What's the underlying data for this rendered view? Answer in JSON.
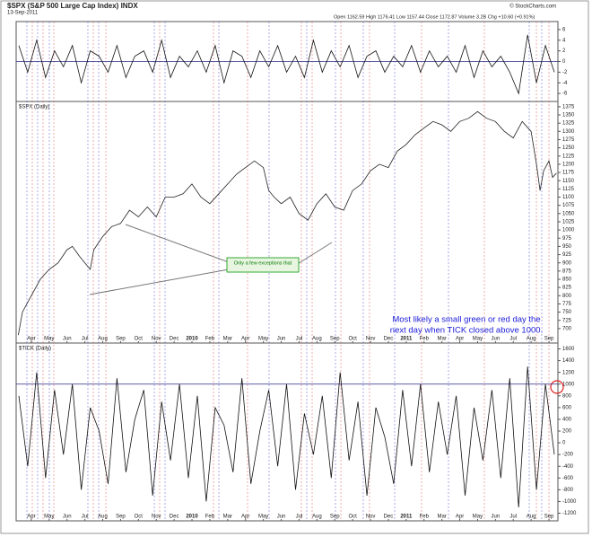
{
  "header": {
    "title": "$SPX (S&P 500 Large Cap Index) INDX",
    "date": "13-Sep-2011",
    "quote": "Open 1162.59 High 1176.41 Low 1157.44 Close 1172.87 Volume 3.2B Chg +10.60 (+0.91%)",
    "source": "© StockCharts.com"
  },
  "chart_data": [
    {
      "type": "line",
      "color": "#111111",
      "x": [
        0.3,
        0.8,
        1.3,
        1.8,
        2.3,
        2.8,
        3.3,
        3.8,
        4.3,
        4.8,
        5.3,
        5.8,
        6.3,
        6.8,
        7.3,
        7.8,
        8.3,
        8.8,
        9.3,
        9.8,
        10.3,
        10.8,
        11.3,
        11.8,
        12.3,
        12.8,
        13.3,
        13.8,
        14.3,
        14.8,
        15.3,
        15.8,
        16.3,
        16.8,
        17.3,
        17.8,
        18.3,
        18.8,
        19.3,
        19.8,
        20.3,
        20.8,
        21.3,
        21.8,
        22.3,
        22.8,
        23.3,
        23.8,
        24.3,
        24.8,
        25.3,
        25.8,
        26.3,
        26.8,
        27.3,
        27.8,
        28.3,
        28.8,
        29.3,
        29.8,
        30.3
      ],
      "values": [
        3,
        -2,
        4,
        -3,
        2,
        -1,
        3,
        -4,
        2,
        1,
        -2,
        3,
        -3,
        1,
        2,
        -2,
        4,
        -3,
        1,
        -1,
        2,
        -2,
        3,
        -4,
        2,
        1,
        -3,
        2,
        -1,
        3,
        -2,
        1,
        -3,
        4,
        -2,
        2,
        -1,
        3,
        -3,
        1,
        2,
        -2,
        1,
        -1,
        3,
        -2,
        2,
        -1,
        1,
        -2,
        3,
        -3,
        2,
        -1,
        1,
        -2,
        -6,
        5,
        -4,
        3,
        -2
      ],
      "xlim": [
        0.15,
        30.5
      ],
      "ylim": [
        -7.5,
        7.5
      ],
      "yticks": [
        6,
        4,
        2,
        0,
        -2,
        -4,
        -6
      ],
      "reference_line": 0
    },
    {
      "type": "line",
      "label": "$SPX (Daily)",
      "color": "#222222",
      "x": [
        0.27,
        0.5,
        1,
        1.5,
        2,
        2.5,
        3,
        3.3,
        3.7,
        4,
        4.3,
        4.5,
        5,
        5.5,
        6,
        6.5,
        7,
        7.5,
        8,
        8.5,
        9,
        9.5,
        10,
        10.5,
        11,
        11.5,
        12,
        12.5,
        13,
        13.5,
        14,
        14.3,
        14.6,
        15,
        15.5,
        16,
        16.5,
        17,
        17.5,
        18,
        18.5,
        19,
        19.5,
        20,
        20.5,
        21,
        21.5,
        22,
        22.5,
        23,
        23.5,
        24,
        24.5,
        25,
        25.5,
        26,
        26.5,
        27,
        27.5,
        28,
        28.5,
        29,
        29.3,
        29.5,
        29.7,
        30,
        30.2,
        30.42
      ],
      "values": [
        680,
        750,
        800,
        850,
        880,
        900,
        940,
        950,
        920,
        900,
        880,
        940,
        980,
        1010,
        1020,
        1060,
        1040,
        1070,
        1040,
        1100,
        1100,
        1110,
        1140,
        1100,
        1080,
        1110,
        1140,
        1170,
        1190,
        1210,
        1190,
        1120,
        1100,
        1080,
        1100,
        1050,
        1030,
        1080,
        1110,
        1070,
        1060,
        1120,
        1140,
        1180,
        1200,
        1190,
        1240,
        1260,
        1290,
        1310,
        1330,
        1320,
        1300,
        1330,
        1340,
        1360,
        1340,
        1330,
        1300,
        1280,
        1330,
        1300,
        1200,
        1120,
        1180,
        1210,
        1160,
        1172.87
      ],
      "xlim": [
        0.15,
        30.5
      ],
      "ylim": [
        656,
        1391
      ],
      "yticks": [
        700,
        725,
        750,
        775,
        800,
        825,
        850,
        875,
        900,
        925,
        950,
        975,
        1000,
        1025,
        1050,
        1075,
        1100,
        1125,
        1150,
        1175,
        1200,
        1225,
        1250,
        1275,
        1300,
        1325,
        1350,
        1375
      ],
      "xticks": [
        {
          "value": 1,
          "label": "Apr"
        },
        {
          "value": 2,
          "label": "May"
        },
        {
          "value": 3,
          "label": "Jun"
        },
        {
          "value": 4,
          "label": "Jul"
        },
        {
          "value": 5,
          "label": "Aug"
        },
        {
          "value": 6,
          "label": "Sep"
        },
        {
          "value": 7,
          "label": "Oct"
        },
        {
          "value": 8,
          "label": "Nov"
        },
        {
          "value": 9,
          "label": "Dec"
        },
        {
          "value": 10,
          "label": "2010"
        },
        {
          "value": 11,
          "label": "Feb"
        },
        {
          "value": 12,
          "label": "Mar"
        },
        {
          "value": 13,
          "label": "Apr"
        },
        {
          "value": 14,
          "label": "May"
        },
        {
          "value": 15,
          "label": "Jun"
        },
        {
          "value": 16,
          "label": "Jul"
        },
        {
          "value": 17,
          "label": "Aug"
        },
        {
          "value": 18,
          "label": "Sep"
        },
        {
          "value": 19,
          "label": "Oct"
        },
        {
          "value": 20,
          "label": "Nov"
        },
        {
          "value": 21,
          "label": "Dec"
        },
        {
          "value": 22,
          "label": "2011"
        },
        {
          "value": 23,
          "label": "Feb"
        },
        {
          "value": 24,
          "label": "Mar"
        },
        {
          "value": 25,
          "label": "Apr"
        },
        {
          "value": 26,
          "label": "May"
        },
        {
          "value": 27,
          "label": "Jun"
        },
        {
          "value": 28,
          "label": "Jul"
        },
        {
          "value": 29,
          "label": "Aug"
        },
        {
          "value": 30,
          "label": "Sep"
        }
      ],
      "annotation": [
        "Most likely a small green or red day the",
        "next day when TICK closed above 1000."
      ],
      "note": "Only a few exceptions that"
    },
    {
      "type": "line",
      "label": "$TICK (Daily)",
      "color": "#111111",
      "x": [
        0.3,
        0.8,
        1.3,
        1.8,
        2.3,
        2.8,
        3.3,
        3.8,
        4.3,
        4.8,
        5.3,
        5.8,
        6.3,
        6.8,
        7.3,
        7.8,
        8.3,
        8.8,
        9.3,
        9.8,
        10.3,
        10.8,
        11.3,
        11.8,
        12.3,
        12.8,
        13.3,
        13.8,
        14.3,
        14.8,
        15.3,
        15.8,
        16.3,
        16.8,
        17.3,
        17.8,
        18.3,
        18.8,
        19.3,
        19.8,
        20.3,
        20.8,
        21.3,
        21.8,
        22.3,
        22.8,
        23.3,
        23.8,
        24.3,
        24.8,
        25.3,
        25.8,
        26.3,
        26.8,
        27.3,
        27.8,
        28.3,
        28.8,
        29.3,
        29.8,
        30.3
      ],
      "values": [
        800,
        -400,
        1200,
        -600,
        900,
        -200,
        1000,
        -800,
        600,
        200,
        -700,
        1100,
        -500,
        400,
        900,
        -900,
        700,
        -300,
        1000,
        -600,
        800,
        -1000,
        600,
        300,
        -500,
        1100,
        -700,
        200,
        900,
        -400,
        1000,
        -800,
        500,
        -200,
        800,
        -600,
        1200,
        -300,
        700,
        -900,
        600,
        100,
        -700,
        900,
        -400,
        1000,
        -500,
        700,
        -200,
        800,
        -900,
        600,
        -300,
        900,
        -600,
        1100,
        -1100,
        1300,
        -800,
        1000,
        -200
      ],
      "xlim": [
        0.15,
        30.5
      ],
      "ylim": [
        -1330,
        1700
      ],
      "yticks": [
        1600,
        1400,
        1200,
        1000,
        800,
        600,
        400,
        200,
        0,
        -200,
        -400,
        -600,
        -800,
        -1000,
        -1200
      ],
      "reference_line": 1000,
      "xticks": [
        {
          "value": 1,
          "label": "Apr"
        },
        {
          "value": 2,
          "label": "May"
        },
        {
          "value": 3,
          "label": "Jun"
        },
        {
          "value": 4,
          "label": "Jul"
        },
        {
          "value": 5,
          "label": "Aug"
        },
        {
          "value": 6,
          "label": "Sep"
        },
        {
          "value": 7,
          "label": "Oct"
        },
        {
          "value": 8,
          "label": "Nov"
        },
        {
          "value": 9,
          "label": "Dec"
        },
        {
          "value": 10,
          "label": "2010"
        },
        {
          "value": 11,
          "label": "Feb"
        },
        {
          "value": 12,
          "label": "Mar"
        },
        {
          "value": 13,
          "label": "Apr"
        },
        {
          "value": 14,
          "label": "May"
        },
        {
          "value": 15,
          "label": "Jun"
        },
        {
          "value": 16,
          "label": "Jul"
        },
        {
          "value": 17,
          "label": "Aug"
        },
        {
          "value": 18,
          "label": "Sep"
        },
        {
          "value": 19,
          "label": "Oct"
        },
        {
          "value": 20,
          "label": "Nov"
        },
        {
          "value": 21,
          "label": "Dec"
        },
        {
          "value": 22,
          "label": "2011"
        },
        {
          "value": 23,
          "label": "Feb"
        },
        {
          "value": 24,
          "label": "Mar"
        },
        {
          "value": 25,
          "label": "Apr"
        },
        {
          "value": 26,
          "label": "May"
        },
        {
          "value": 27,
          "label": "Jun"
        },
        {
          "value": 28,
          "label": "Jul"
        },
        {
          "value": 29,
          "label": "Aug"
        },
        {
          "value": 30,
          "label": "Sep"
        }
      ]
    }
  ]
}
